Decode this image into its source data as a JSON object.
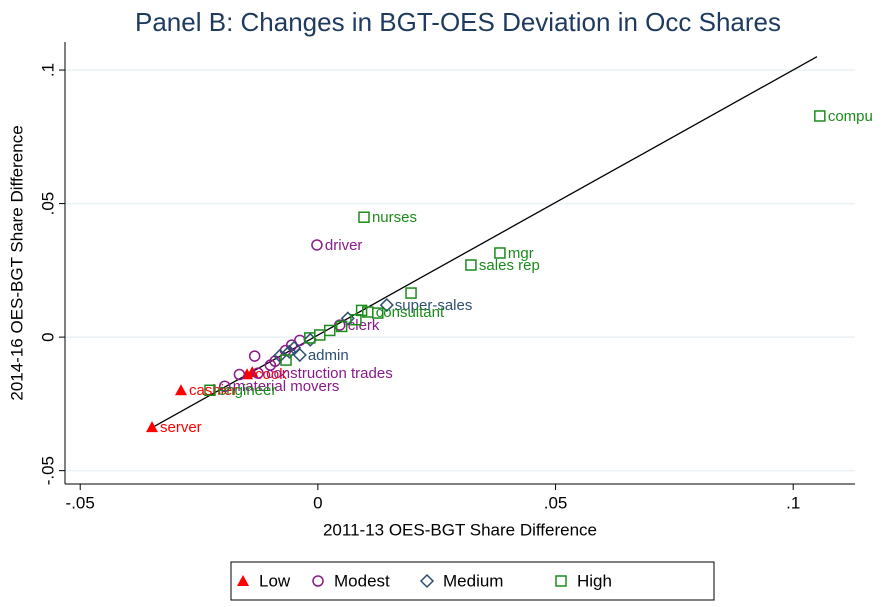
{
  "chart_data": {
    "type": "scatter",
    "title": "Panel B: Changes in BGT-OES Deviation in Occ Shares",
    "x_label": "2011-13 OES-BGT Share Difference",
    "y_label": "2014-16 OES-BGT Share Difference",
    "xlim": [
      -0.0532,
      0.113
    ],
    "ylim": [
      -0.055,
      0.1105
    ],
    "xticks": [
      {
        "value": -0.05,
        "label": "-.05"
      },
      0,
      {
        "value": 0.05,
        "label": ".05"
      },
      {
        "value": 0.1,
        "label": ".1"
      }
    ],
    "yticks": [
      {
        "value": -0.05,
        "label": "-.05"
      },
      0,
      {
        "value": 0.05,
        "label": ".05"
      },
      {
        "value": 0.1,
        "label": ".1"
      }
    ],
    "grid": true,
    "legend": "bottom",
    "fit_line": {
      "x": [
        -0.035,
        0.105
      ],
      "y": [
        -0.034,
        0.105
      ],
      "color": "#000000"
    },
    "series": [
      {
        "name": "Low",
        "marker": "triangle",
        "color": "#ff0000",
        "x": [
          -0.0349,
          -0.0288,
          -0.0149,
          -0.0138
        ],
        "values": [
          -0.0337,
          -0.0199,
          -0.0139,
          -0.0131
        ],
        "point_labels": [
          "server",
          "cashier",
          "cook",
          null
        ]
      },
      {
        "name": "Modest",
        "marker": "circle",
        "color": "#8b1a8b",
        "x": [
          -0.0002,
          -0.0196,
          -0.0126,
          0.0046,
          -0.0133,
          -0.0165,
          -0.01,
          -0.009,
          -0.0068,
          -0.0055,
          -0.0038
        ],
        "values": [
          0.0345,
          -0.0184,
          -0.0135,
          0.0045,
          -0.0071,
          -0.014,
          -0.0105,
          -0.009,
          -0.005,
          -0.003,
          -0.0012
        ],
        "point_labels": [
          "driver",
          "material movers",
          "construction trades",
          "clerk",
          null,
          null,
          null,
          null,
          null,
          null,
          null
        ]
      },
      {
        "name": "Medium",
        "marker": "diamond",
        "color": "#2e4f6e",
        "x": [
          0.0145,
          -0.0038,
          0.0063,
          -0.006,
          -0.005,
          -0.0016,
          -0.008
        ],
        "values": [
          0.012,
          -0.0067,
          0.007,
          -0.0055,
          -0.004,
          -0.001,
          -0.007
        ],
        "point_labels": [
          "super-sales",
          "admin",
          null,
          null,
          null,
          null,
          null
        ]
      },
      {
        "name": "High",
        "marker": "square",
        "color": "#1a8c1a",
        "x": [
          0.1056,
          0.0097,
          0.0383,
          0.0322,
          0.0105,
          -0.0227,
          0.0196,
          0.0092,
          0.0126,
          0.0025,
          0.0004,
          -0.0017,
          -0.0067,
          0.005,
          0.008
        ],
        "values": [
          0.0828,
          0.0449,
          0.0315,
          0.027,
          0.0094,
          -0.0199,
          0.0165,
          0.01,
          0.009,
          0.0025,
          0.0008,
          -0.0003,
          -0.0086,
          0.004,
          0.0065
        ],
        "point_labels": [
          "compu",
          "nurses",
          "mgr",
          "sales rep",
          "consultant",
          "engineer",
          null,
          null,
          null,
          null,
          null,
          null,
          null,
          null,
          null
        ]
      }
    ]
  }
}
